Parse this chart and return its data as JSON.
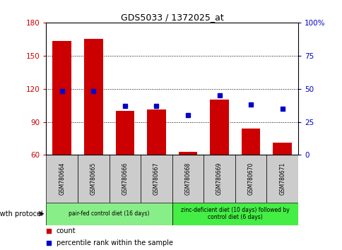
{
  "title": "GDS5033 / 1372025_at",
  "categories": [
    "GSM780664",
    "GSM780665",
    "GSM780666",
    "GSM780667",
    "GSM780668",
    "GSM780669",
    "GSM780670",
    "GSM780671"
  ],
  "count_values": [
    163,
    165,
    100,
    101,
    63,
    110,
    84,
    71
  ],
  "percentile_values": [
    48,
    48,
    37,
    37,
    30,
    45,
    38,
    35
  ],
  "ylim_left": [
    60,
    180
  ],
  "ylim_right": [
    0,
    100
  ],
  "yticks_left": [
    60,
    90,
    120,
    150,
    180
  ],
  "yticks_right": [
    0,
    25,
    50,
    75,
    100
  ],
  "ytick_labels_right": [
    "0",
    "25",
    "50",
    "75",
    "100%"
  ],
  "bar_color": "#cc0000",
  "dot_color": "#0000cc",
  "bar_width": 0.6,
  "group1_label": "pair-fed control diet (16 days)",
  "group2_label": "zinc-deficient diet (10 days) followed by\ncontrol diet (6 days)",
  "group1_color": "#88ee88",
  "group2_color": "#44ee44",
  "tick_label_color_left": "#cc0000",
  "tick_label_color_right": "#0000cc",
  "legend_count_label": "count",
  "legend_percentile_label": "percentile rank within the sample",
  "growth_protocol_label": "growth protocol",
  "sample_box_color": "#cccccc",
  "title_fontsize": 9,
  "axis_fontsize": 7.5,
  "legend_fontsize": 7,
  "sample_fontsize": 5.5,
  "protocol_fontsize": 5.5
}
